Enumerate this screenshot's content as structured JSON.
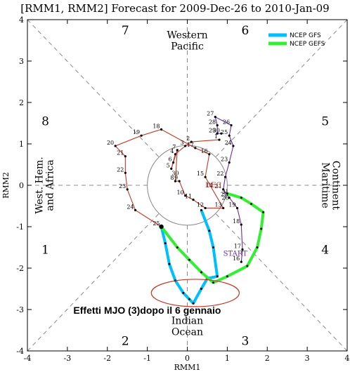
{
  "chart_data": {
    "type": "line",
    "title": "[RMM1, RMM2] Forecast for 2009-Dec-26 to 2010-Jan-09",
    "xlabel": "RMM1",
    "ylabel": "RMM2",
    "xlim": [
      -4,
      4
    ],
    "ylim": [
      -4,
      4
    ],
    "xticks": [
      "-4",
      "-3",
      "-2",
      "-1",
      "0",
      "1",
      "2",
      "3",
      "4"
    ],
    "yticks": [
      "-4",
      "-3",
      "-2",
      "-1",
      "0",
      "1",
      "2",
      "3",
      "4"
    ],
    "phases": [
      {
        "label": "1",
        "x": -3.55,
        "y": -1.55
      },
      {
        "label": "2",
        "x": -1.55,
        "y": -3.75
      },
      {
        "label": "3",
        "x": 1.45,
        "y": -3.75
      },
      {
        "label": "4",
        "x": 3.45,
        "y": -1.55
      },
      {
        "label": "5",
        "x": 3.45,
        "y": 1.55
      },
      {
        "label": "6",
        "x": 1.45,
        "y": 3.75
      },
      {
        "label": "7",
        "x": -1.55,
        "y": 3.75
      },
      {
        "label": "8",
        "x": -3.55,
        "y": 1.55
      }
    ],
    "regions": {
      "top": [
        "Western",
        "Pacific"
      ],
      "bottom": [
        "Indian",
        "Ocean"
      ],
      "left": [
        "West. Hem.",
        "and Africa"
      ],
      "right": [
        "Maritime",
        "Continent"
      ]
    },
    "observed_nov": {
      "color": "#6b2c9c",
      "points": [
        {
          "x": 1.35,
          "y": -1.85,
          "label": "16"
        },
        {
          "x": 1.38,
          "y": -1.55,
          "label": "17"
        },
        {
          "x": 1.35,
          "y": -0.95,
          "label": "18"
        },
        {
          "x": 1.25,
          "y": -0.55,
          "label": "19"
        },
        {
          "x": 1.05,
          "y": -0.3,
          "label": "20"
        },
        {
          "x": 0.9,
          "y": -0.1,
          "label": "21"
        },
        {
          "x": 0.95,
          "y": 0.2,
          "label": "22"
        },
        {
          "x": 1.05,
          "y": 0.55,
          "label": "23"
        },
        {
          "x": 1.15,
          "y": 0.95,
          "label": "24"
        },
        {
          "x": 1.05,
          "y": 1.2,
          "label": "25"
        },
        {
          "x": 1.1,
          "y": 1.45,
          "label": "26"
        },
        {
          "x": 0.7,
          "y": 1.65,
          "label": "27"
        },
        {
          "x": 0.75,
          "y": 1.45,
          "label": "28"
        },
        {
          "x": 0.75,
          "y": 1.25,
          "label": "29"
        },
        {
          "x": 0.85,
          "y": 1.25,
          "label": "30"
        }
      ]
    },
    "observed_dec": {
      "color": "#c0392b",
      "label": "DEC",
      "label_pos": {
        "x": 0.45,
        "y": -0.05
      },
      "points": [
        {
          "x": 0.8,
          "y": 1.1,
          "label": "1"
        },
        {
          "x": 0.1,
          "y": 1.05,
          "label": "2"
        },
        {
          "x": -0.05,
          "y": 0.95,
          "label": "3"
        },
        {
          "x": -0.3,
          "y": 0.75,
          "label": "4"
        },
        {
          "x": -0.4,
          "y": 0.4,
          "label": "5"
        },
        {
          "x": -0.35,
          "y": 0.55,
          "label": "6"
        },
        {
          "x": -0.25,
          "y": 0.85,
          "label": "7"
        },
        {
          "x": -0.3,
          "y": 0.1,
          "label": "8"
        },
        {
          "x": -0.2,
          "y": 0.1,
          "label": "9"
        },
        {
          "x": -0.05,
          "y": -0.25,
          "label": "10"
        },
        {
          "x": 0.15,
          "y": -0.35,
          "label": "11"
        },
        {
          "x": 0.45,
          "y": -0.55,
          "label": "12"
        },
        {
          "x": 0.9,
          "y": -0.55,
          "label": "13"
        },
        {
          "x": 0.45,
          "y": 0.2,
          "label": "15"
        },
        {
          "x": 0.55,
          "y": 0.75,
          "label": "16"
        },
        {
          "x": 0.2,
          "y": 0.9,
          "label": "17"
        },
        {
          "x": -0.65,
          "y": 1.35,
          "label": "18"
        },
        {
          "x": -1.15,
          "y": 1.2,
          "label": "19"
        },
        {
          "x": -1.8,
          "y": 0.95,
          "label": "20"
        },
        {
          "x": -1.55,
          "y": 0.7,
          "label": "21"
        },
        {
          "x": -1.55,
          "y": 0.3,
          "label": "22"
        },
        {
          "x": -1.5,
          "y": -0.1,
          "label": "23"
        },
        {
          "x": -1.3,
          "y": -0.6,
          "label": "24"
        },
        {
          "x": -0.65,
          "y": -1.0,
          "label": "25"
        }
      ]
    },
    "extra_labels": [
      {
        "x": -0.3,
        "y": 0.25,
        "label": "30"
      },
      {
        "x": 0.95,
        "y": -0.2,
        "label": "31"
      },
      {
        "x": 0.95,
        "y": -0.35,
        "label": "26"
      },
      {
        "x": 0.55,
        "y": -0.05,
        "label": "14"
      }
    ],
    "start_label": {
      "text": "START",
      "x": 1.2,
      "y": -1.7,
      "color": "#6b2c9c"
    },
    "series": [
      {
        "name": "NCEP GFS",
        "color": "#00bfff",
        "points": [
          {
            "x": -0.65,
            "y": -1.0
          },
          {
            "x": -0.55,
            "y": -1.4
          },
          {
            "x": -0.45,
            "y": -1.9
          },
          {
            "x": -0.3,
            "y": -2.3
          },
          {
            "x": -0.1,
            "y": -2.6
          },
          {
            "x": 0.05,
            "y": -2.75
          },
          {
            "x": 0.15,
            "y": -2.85
          },
          {
            "x": 0.35,
            "y": -2.5
          },
          {
            "x": 0.5,
            "y": -2.25
          },
          {
            "x": 0.75,
            "y": -2.2
          },
          {
            "x": 0.65,
            "y": -1.5
          },
          {
            "x": 0.55,
            "y": -1.1
          },
          {
            "x": 0.35,
            "y": -0.6
          }
        ]
      },
      {
        "name": "NCEP GEFS",
        "color": "#33ee33",
        "points": [
          {
            "x": -0.65,
            "y": -1.0
          },
          {
            "x": -0.25,
            "y": -1.5
          },
          {
            "x": 0.05,
            "y": -1.8
          },
          {
            "x": 0.35,
            "y": -2.1
          },
          {
            "x": 0.65,
            "y": -2.35
          },
          {
            "x": 1.0,
            "y": -2.2
          },
          {
            "x": 1.5,
            "y": -1.95
          },
          {
            "x": 1.75,
            "y": -1.5
          },
          {
            "x": 1.85,
            "y": -1.05
          },
          {
            "x": 1.9,
            "y": -0.65
          },
          {
            "x": 1.6,
            "y": -0.45
          },
          {
            "x": 1.35,
            "y": -0.3
          },
          {
            "x": 1.0,
            "y": -0.2
          }
        ]
      }
    ],
    "annotation": {
      "text": "Effetti MJO (3)dopo il 6 gennaio",
      "x": -2.85,
      "y": -3.1
    },
    "ellipse": {
      "cx": 0.2,
      "cy": -2.6,
      "rx": 1.1,
      "ry": 0.33,
      "color": "#c0392b"
    },
    "unit_circle_color": "#888888"
  }
}
